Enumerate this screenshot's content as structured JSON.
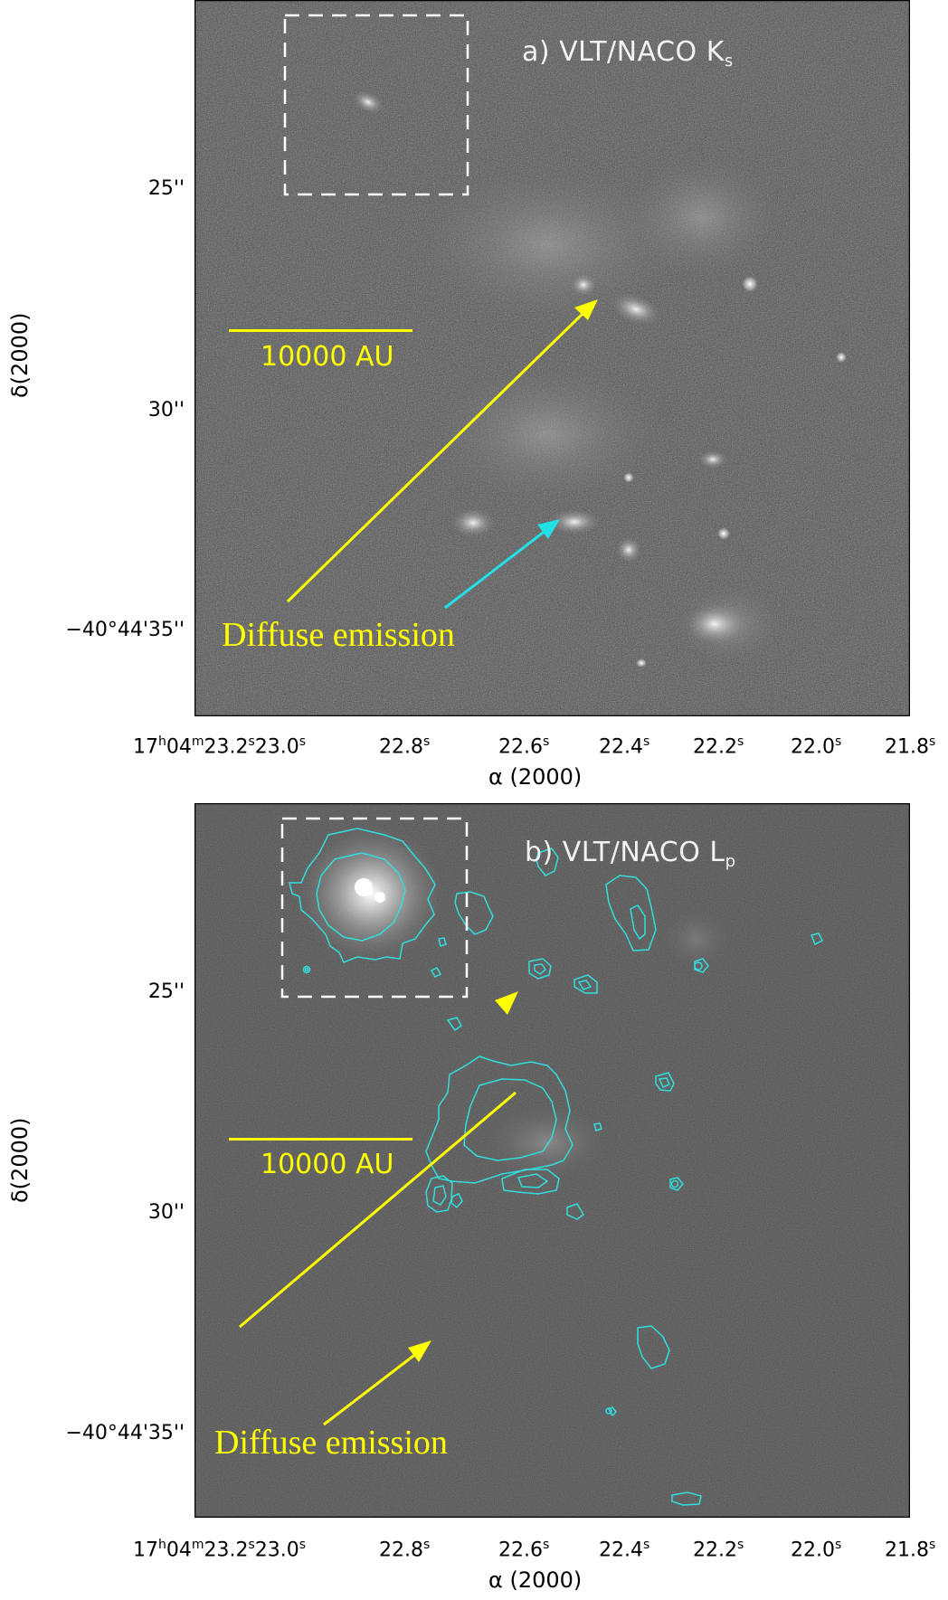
{
  "panel_a": {
    "title": "a) VLT/NACO K",
    "title_sub": "s",
    "scale_label": "10000 AU",
    "annotation": "Diffuse emission",
    "y_ticks": [
      "25''",
      "30''",
      "−40°44'35''"
    ],
    "y_label": "δ(2000)",
    "x_ticks": [
      "17h04m23.2s23.0s",
      "22.8s",
      "22.6s",
      "22.4s",
      "22.2s",
      "22.0s",
      "21.8s"
    ],
    "x_label": "α (2000)"
  },
  "panel_b": {
    "title": "b) VLT/NACO L",
    "title_sub": "p",
    "scale_label": "10000 AU",
    "annotation": "Diffuse emission",
    "y_ticks": [
      "25''",
      "30''",
      "−40°44'35''"
    ],
    "y_label": "δ(2000)",
    "x_ticks": [
      "17h04m23.2s23.0s",
      "22.8s",
      "22.6s",
      "22.4s",
      "22.2s",
      "22.0s",
      "21.8s"
    ],
    "x_label": "α (2000)"
  },
  "colors": {
    "annotation": "#ffff00",
    "contour": "#33dddd",
    "arrow_cyan": "#22e0e8",
    "title": "#f2f2f2"
  }
}
